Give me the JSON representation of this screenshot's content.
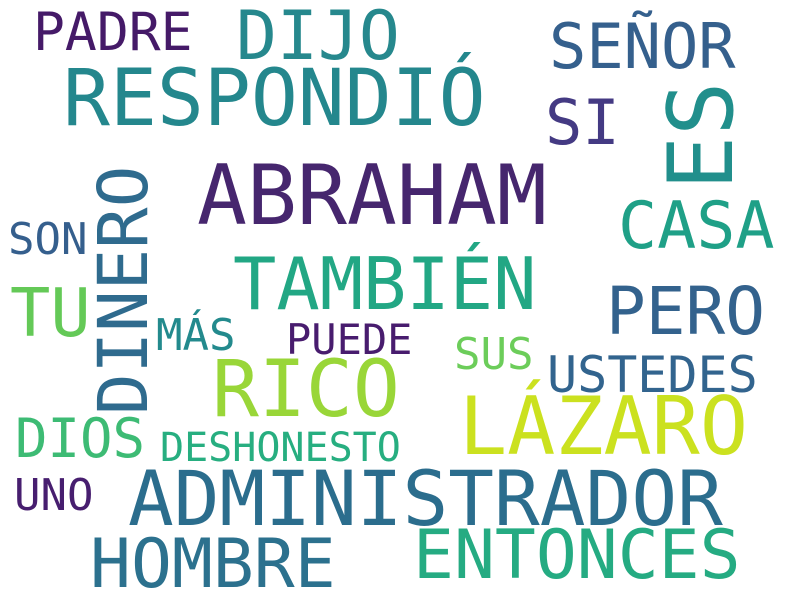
{
  "words": {
    "abraham": {
      "text": "ABRAHAM",
      "color": "#46266e"
    },
    "rico": {
      "text": "RICO",
      "color": "#99d638"
    },
    "administrador": {
      "text": "ADMINISTRADOR",
      "color": "#2b6d8d"
    },
    "respondio": {
      "text": "RESPONDIÓ",
      "color": "#24878d"
    },
    "lazaro": {
      "text": "LÁZARO",
      "color": "#cbe11f"
    },
    "tambien": {
      "text": "TAMBIÉN",
      "color": "#22a784"
    },
    "entonces": {
      "text": "ENTONCES",
      "color": "#25ab82"
    },
    "dinero": {
      "text": "DINERO",
      "color": "#2f6b8e"
    },
    "es": {
      "text": "ES",
      "color": "#218f8c"
    },
    "hombre": {
      "text": "HOMBRE",
      "color": "#2c718e"
    },
    "dijo": {
      "text": "DIJO",
      "color": "#26888d"
    },
    "casa": {
      "text": "CASA",
      "color": "#1fa087"
    },
    "senor": {
      "text": "SEÑOR",
      "color": "#35608d"
    },
    "pero": {
      "text": "PERO",
      "color": "#33628d"
    },
    "tu": {
      "text": "TU",
      "color": "#64c957"
    },
    "si": {
      "text": "SI",
      "color": "#443a83"
    },
    "padre": {
      "text": "PADRE",
      "color": "#451a68"
    },
    "ustedes": {
      "text": "USTEDES",
      "color": "#32648e"
    },
    "deshonesto": {
      "text": "DESHONESTO",
      "color": "#27ae80"
    },
    "dios": {
      "text": "DIOS",
      "color": "#3dbb74"
    },
    "puede": {
      "text": "PUEDE",
      "color": "#481c6e"
    },
    "mas": {
      "text": "MÁS",
      "color": "#238a8d"
    },
    "sus": {
      "text": "SUS",
      "color": "#6ccd5a"
    },
    "son": {
      "text": "SON",
      "color": "#355f8d"
    },
    "uno": {
      "text": "UNO",
      "color": "#471e6f"
    }
  }
}
